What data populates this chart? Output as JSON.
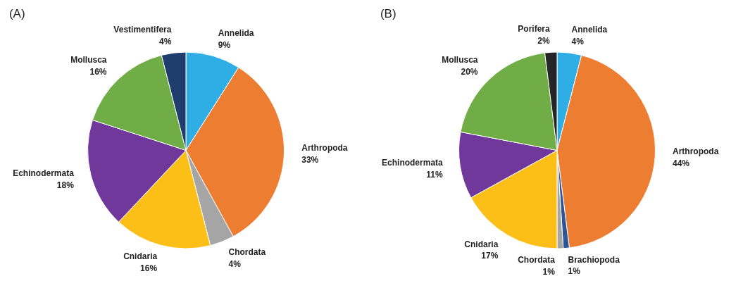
{
  "chart_data": [
    {
      "type": "pie",
      "title": "(A)",
      "categories": [
        "Annelida",
        "Arthropoda",
        "Chordata",
        "Cnidaria",
        "Echinodermata",
        "Mollusca",
        "Vestimentifera"
      ],
      "values": [
        9,
        33,
        4,
        16,
        18,
        16,
        4
      ],
      "value_labels": [
        "9%",
        "33%",
        "4%",
        "16%",
        "18%",
        "16%",
        "4%"
      ],
      "colors": [
        "#2eaee4",
        "#ed7d31",
        "#a5a5a5",
        "#fbbf17",
        "#70389a",
        "#70ad47",
        "#1f3e6e"
      ]
    },
    {
      "type": "pie",
      "title": "(B)",
      "categories": [
        "Annelida",
        "Arthropoda",
        "Brachiopoda",
        "Chordata",
        "Cnidaria",
        "Echinodermata",
        "Mollusca",
        "Porifera"
      ],
      "values": [
        4,
        44,
        1,
        1,
        17,
        11,
        20,
        2
      ],
      "value_labels": [
        "4%",
        "44%",
        "1%",
        "1%",
        "17%",
        "11%",
        "20%",
        "2%"
      ],
      "colors": [
        "#2eaee4",
        "#ed7d31",
        "#2f5597",
        "#a5a5a5",
        "#fbbf17",
        "#70389a",
        "#70ad47",
        "#262626"
      ]
    }
  ]
}
